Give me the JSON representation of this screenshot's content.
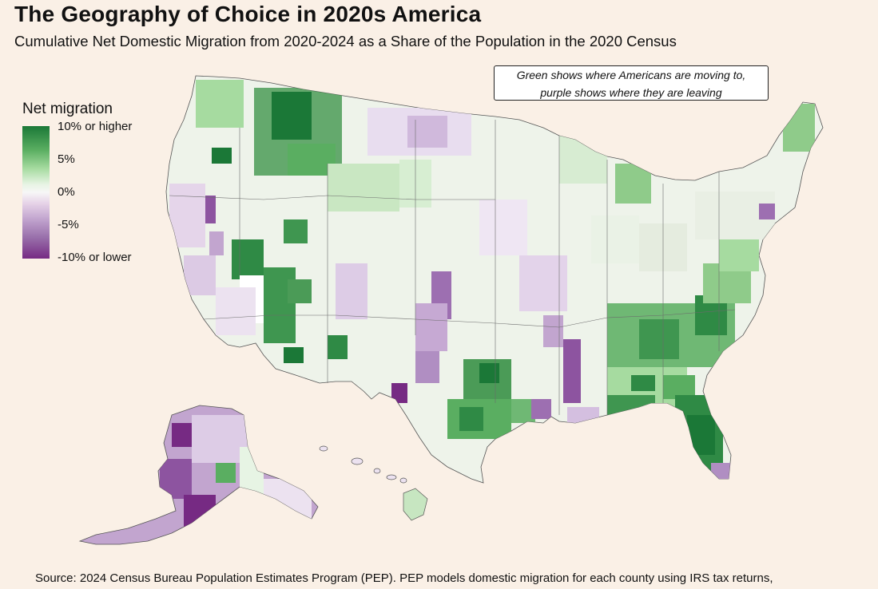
{
  "title": "The Geography of Choice in 2020s America",
  "subtitle": "Cumulative Net Domestic Migration from 2020-2024 as a Share of the Population in the 2020 Census",
  "callout": {
    "line1": "Green shows where Americans are moving to,",
    "line2": "purple shows where they are leaving"
  },
  "legend": {
    "title": "Net migration",
    "labels": [
      "10% or higher",
      "5%",
      "0%",
      "-5%",
      "-10% or lower"
    ],
    "colors": [
      "#1b7837",
      "#5aae61",
      "#a6dba0",
      "#e7f4e4",
      "#f7f7f7",
      "#e7d4e8",
      "#c2a5cf",
      "#9970ab",
      "#762a83"
    ]
  },
  "source": "Source: 2024 Census Bureau Population Estimates Program (PEP). PEP models domestic migration for each county using IRS tax returns,"
}
